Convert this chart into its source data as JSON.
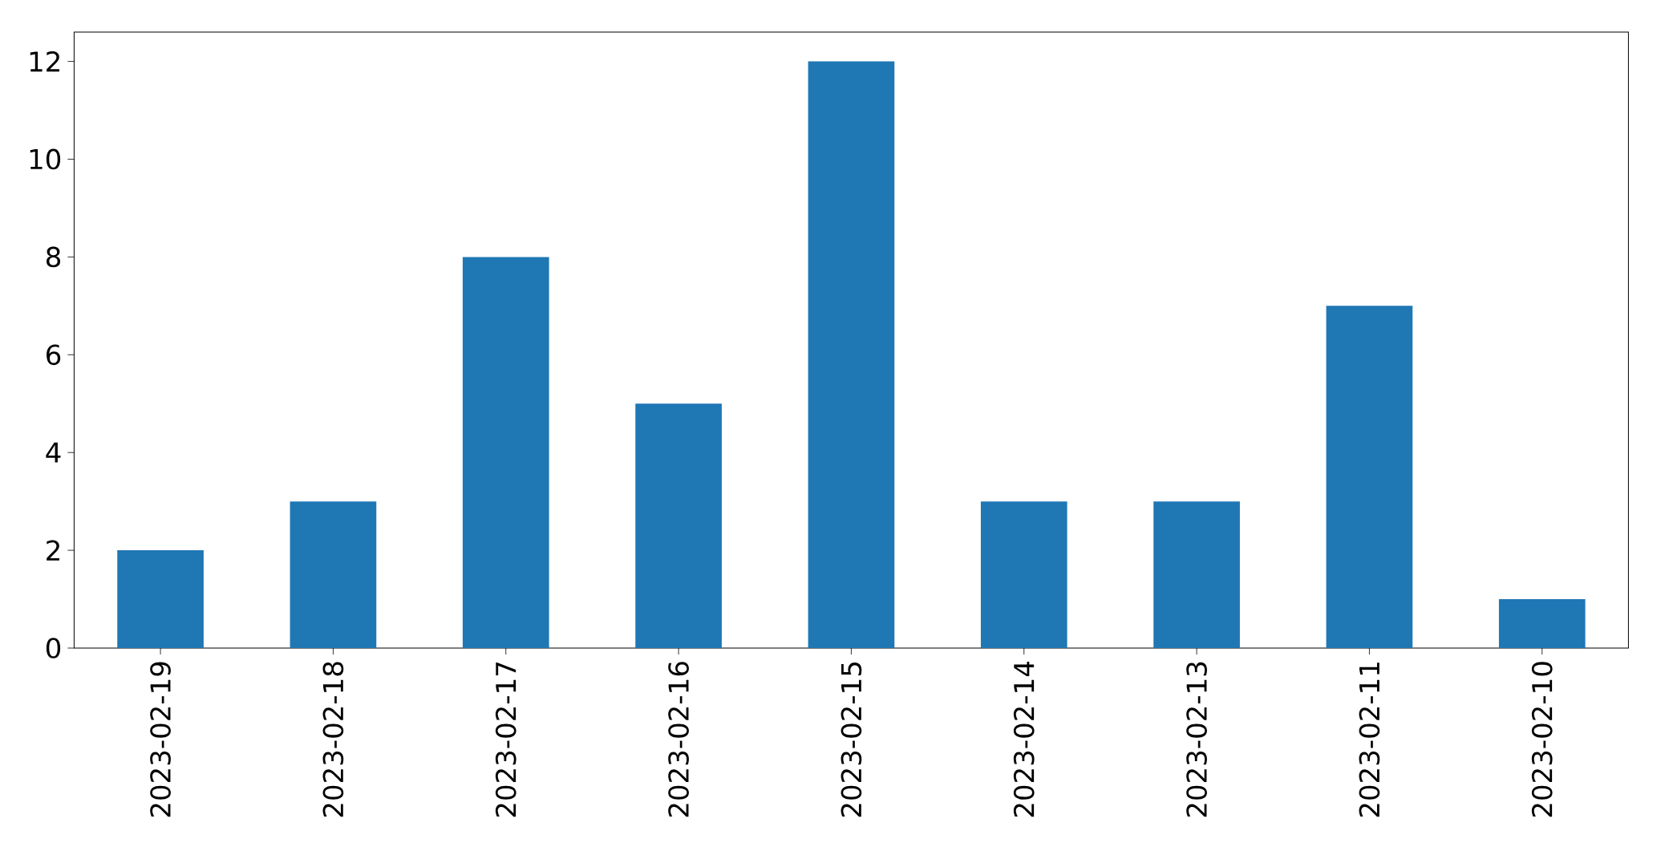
{
  "chart_data": {
    "type": "bar",
    "categories": [
      "2023-02-19",
      "2023-02-18",
      "2023-02-17",
      "2023-02-16",
      "2023-02-15",
      "2023-02-14",
      "2023-02-13",
      "2023-02-11",
      "2023-02-10"
    ],
    "values": [
      2,
      3,
      8,
      5,
      12,
      3,
      3,
      7,
      1
    ],
    "color": "#1f77b4",
    "ylim": [
      0,
      12.6
    ],
    "yticks": [
      0,
      2,
      4,
      6,
      8,
      10,
      12
    ],
    "grid": false
  }
}
